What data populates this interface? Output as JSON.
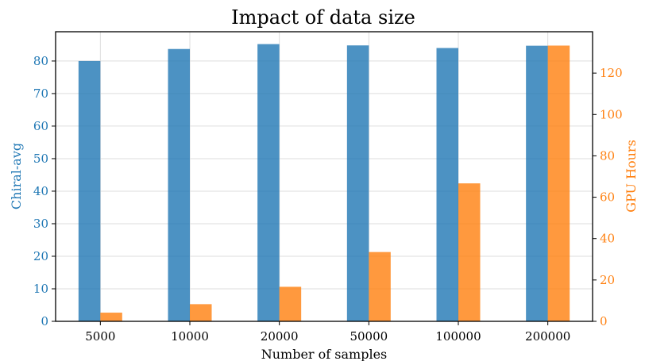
{
  "chart_data": {
    "type": "bar",
    "title": "Impact of data size",
    "xlabel": "Number of samples",
    "categories": [
      "5000",
      "10000",
      "20000",
      "50000",
      "100000",
      "200000"
    ],
    "series": [
      {
        "name": "Chiral-avg",
        "axis": "left",
        "color": "#1f77b4",
        "values": [
          80.0,
          83.7,
          85.2,
          84.8,
          84.0,
          84.7
        ]
      },
      {
        "name": "GPU Hours",
        "axis": "right",
        "color": "#ff7f0e",
        "values": [
          4.2,
          8.3,
          16.7,
          33.5,
          66.7,
          133.3
        ]
      }
    ],
    "y_left": {
      "label": "Chiral-avg",
      "ylim": [
        0,
        89
      ],
      "ticks": [
        0,
        10,
        20,
        30,
        40,
        50,
        60,
        70,
        80
      ],
      "color": "#1f77b4"
    },
    "y_right": {
      "label": "GPU Hours",
      "ylim": [
        0,
        140
      ],
      "ticks": [
        0,
        20,
        40,
        60,
        80,
        100,
        120
      ],
      "color": "#ff7f0e"
    },
    "grid": true,
    "legend": "none"
  }
}
